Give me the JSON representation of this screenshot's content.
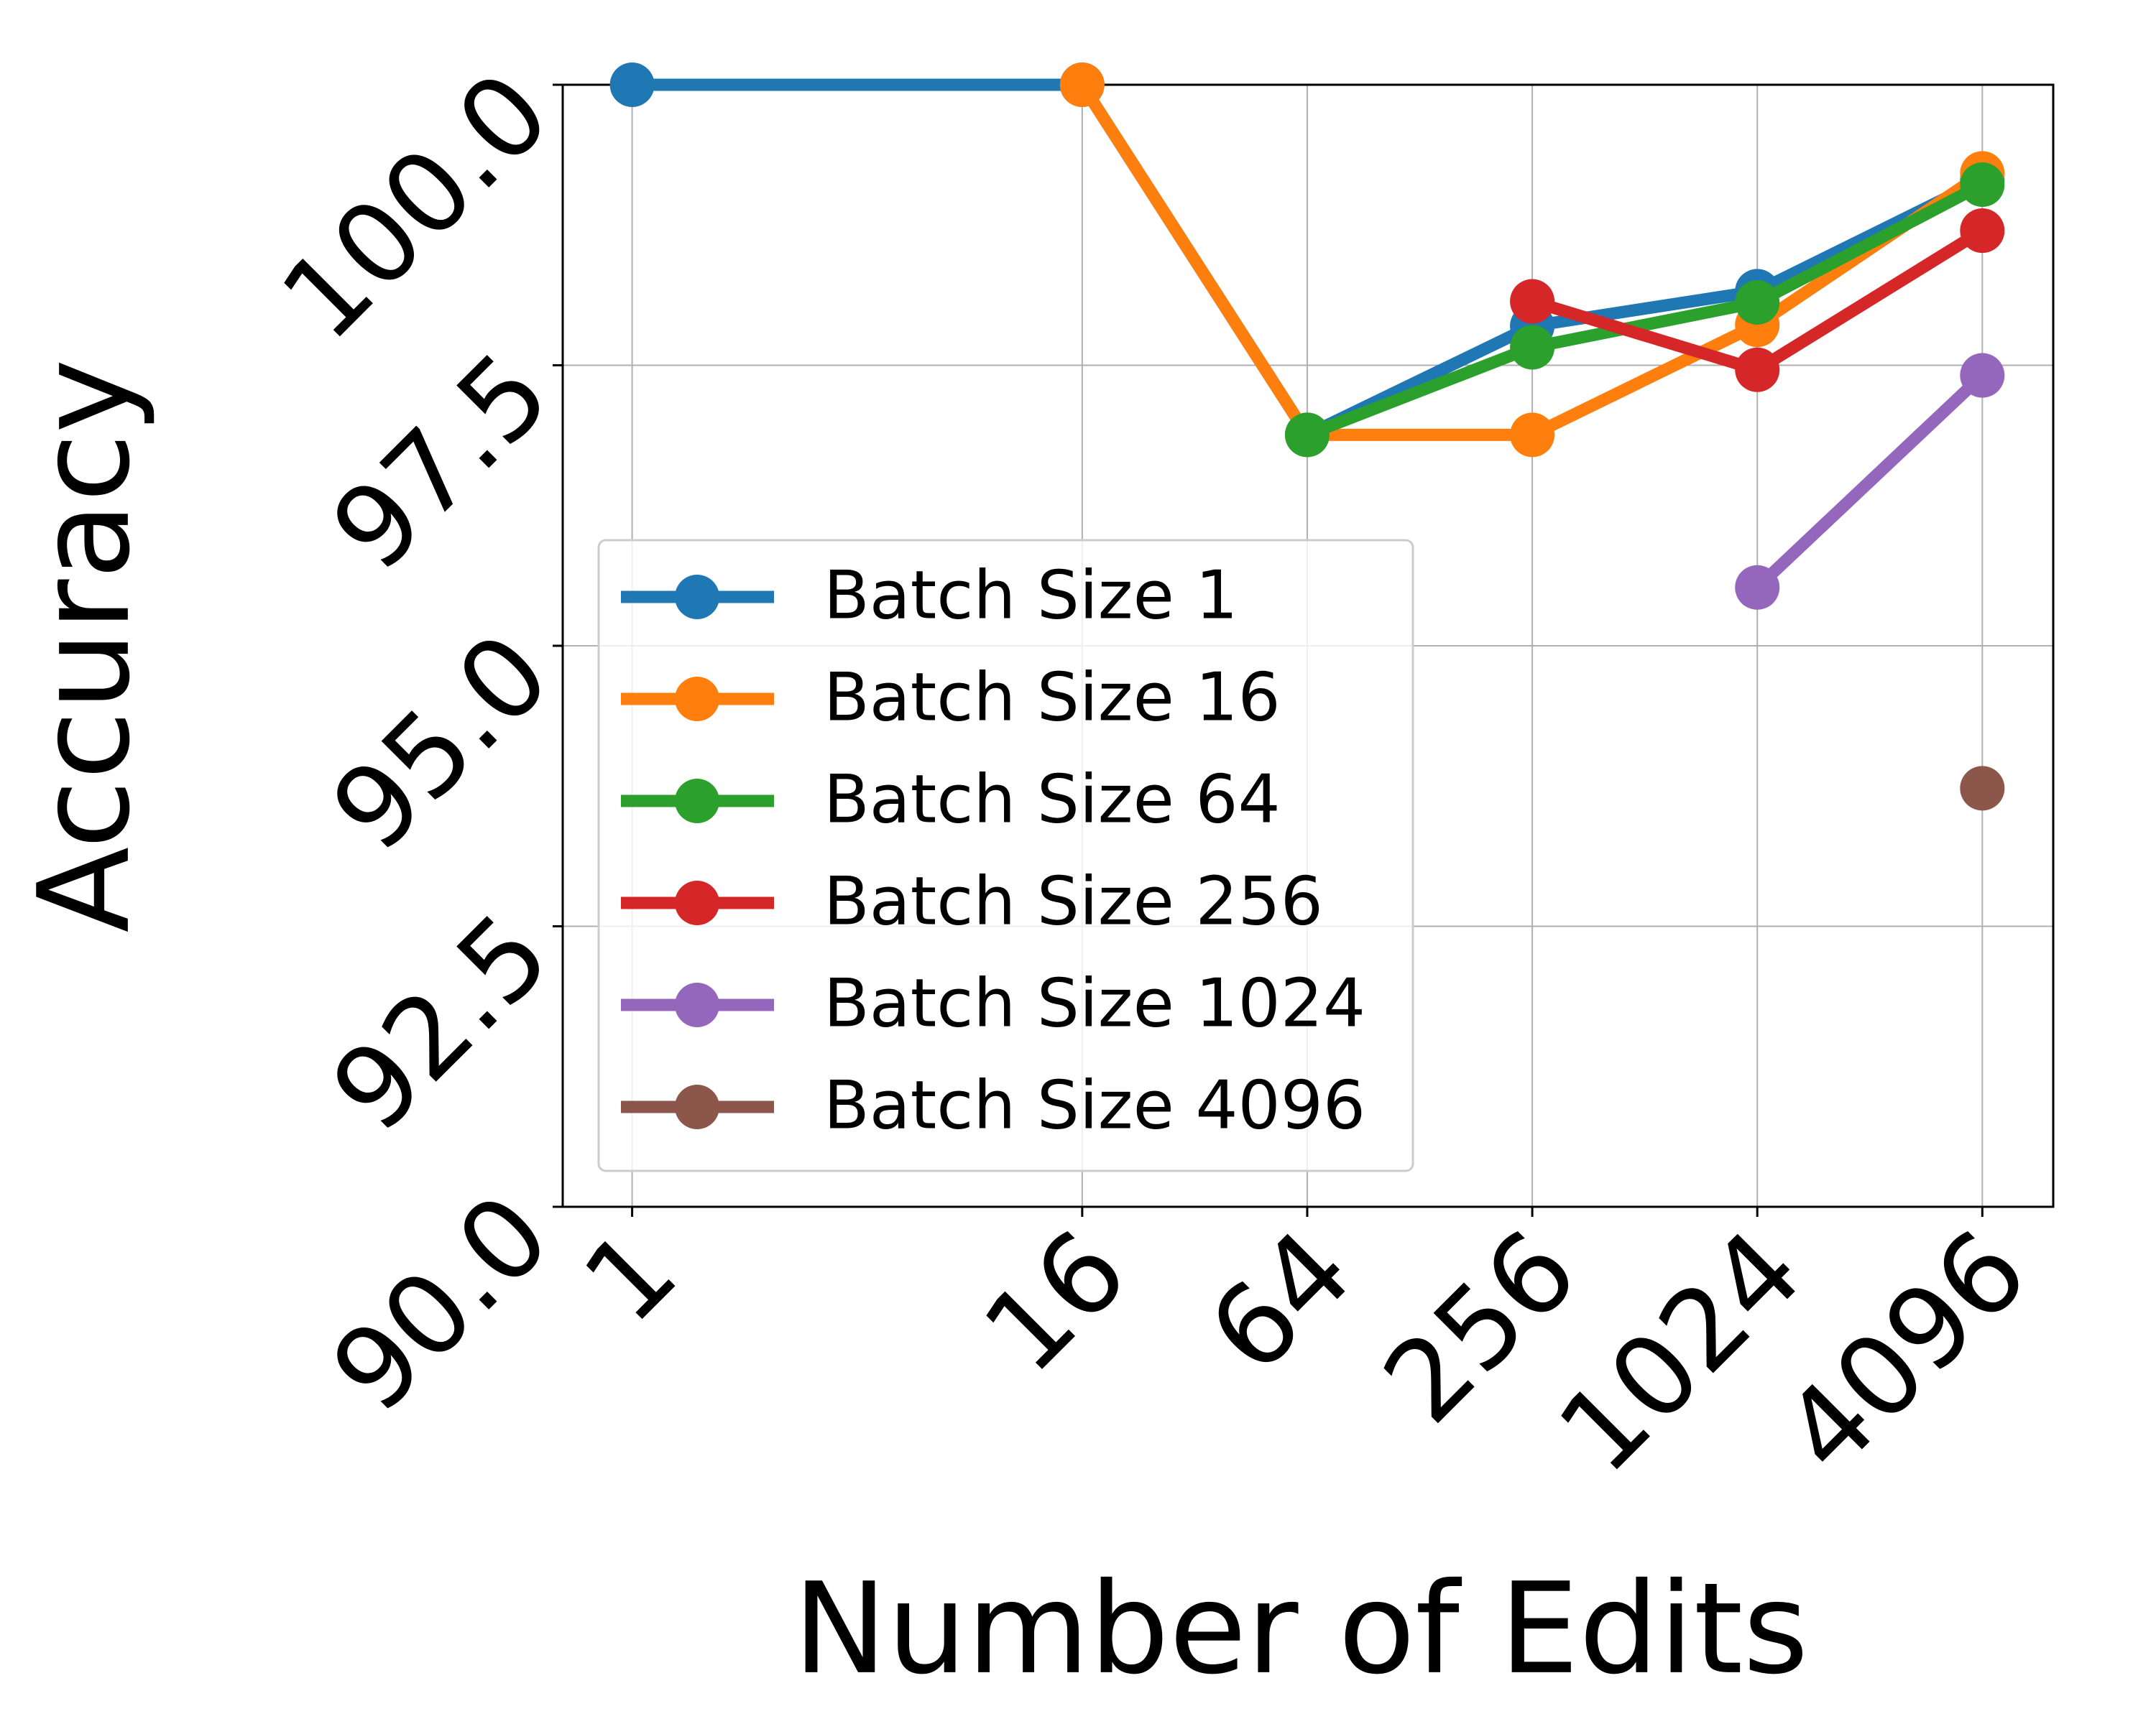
{
  "chart_data": {
    "type": "line",
    "x_label": "Number of Edits",
    "y_label": "Accuracy",
    "x": [
      1,
      16,
      64,
      256,
      1024,
      4096
    ],
    "xticks": [
      1,
      16,
      64,
      256,
      1024,
      4096
    ],
    "xlim": [
      0.652,
      6340
    ],
    "x_scale": "log2",
    "ylim": [
      90,
      100
    ],
    "yticks": [
      {
        "value": 90,
        "label": "90.0"
      },
      {
        "value": 92.5,
        "label": "92.5"
      },
      {
        "value": 95,
        "label": "95.0"
      },
      {
        "value": 97.5,
        "label": "97.5"
      },
      {
        "value": 100,
        "label": "100.0"
      }
    ],
    "grid": true,
    "legend": "lower left",
    "series": [
      {
        "name": "Batch Size 1",
        "color": "#1f77b4",
        "values": [
          100,
          100,
          96.88,
          97.85,
          98.16,
          99.15
        ]
      },
      {
        "name": "Batch Size 16",
        "color": "#ff7f0e",
        "values": [
          null,
          100,
          96.88,
          96.88,
          97.86,
          99.21
        ]
      },
      {
        "name": "Batch Size 64",
        "color": "#2ca02c",
        "values": [
          null,
          null,
          96.88,
          97.66,
          98.06,
          99.11
        ]
      },
      {
        "name": "Batch Size 256",
        "color": "#d62728",
        "values": [
          null,
          null,
          null,
          98.07,
          97.46,
          98.7
        ]
      },
      {
        "name": "Batch Size 1024",
        "color": "#9467bd",
        "values": [
          null,
          null,
          null,
          null,
          95.52,
          97.41
        ]
      },
      {
        "name": "Batch Size 4096",
        "color": "#8c564b",
        "values": [
          null,
          null,
          null,
          null,
          null,
          93.73
        ]
      }
    ]
  }
}
